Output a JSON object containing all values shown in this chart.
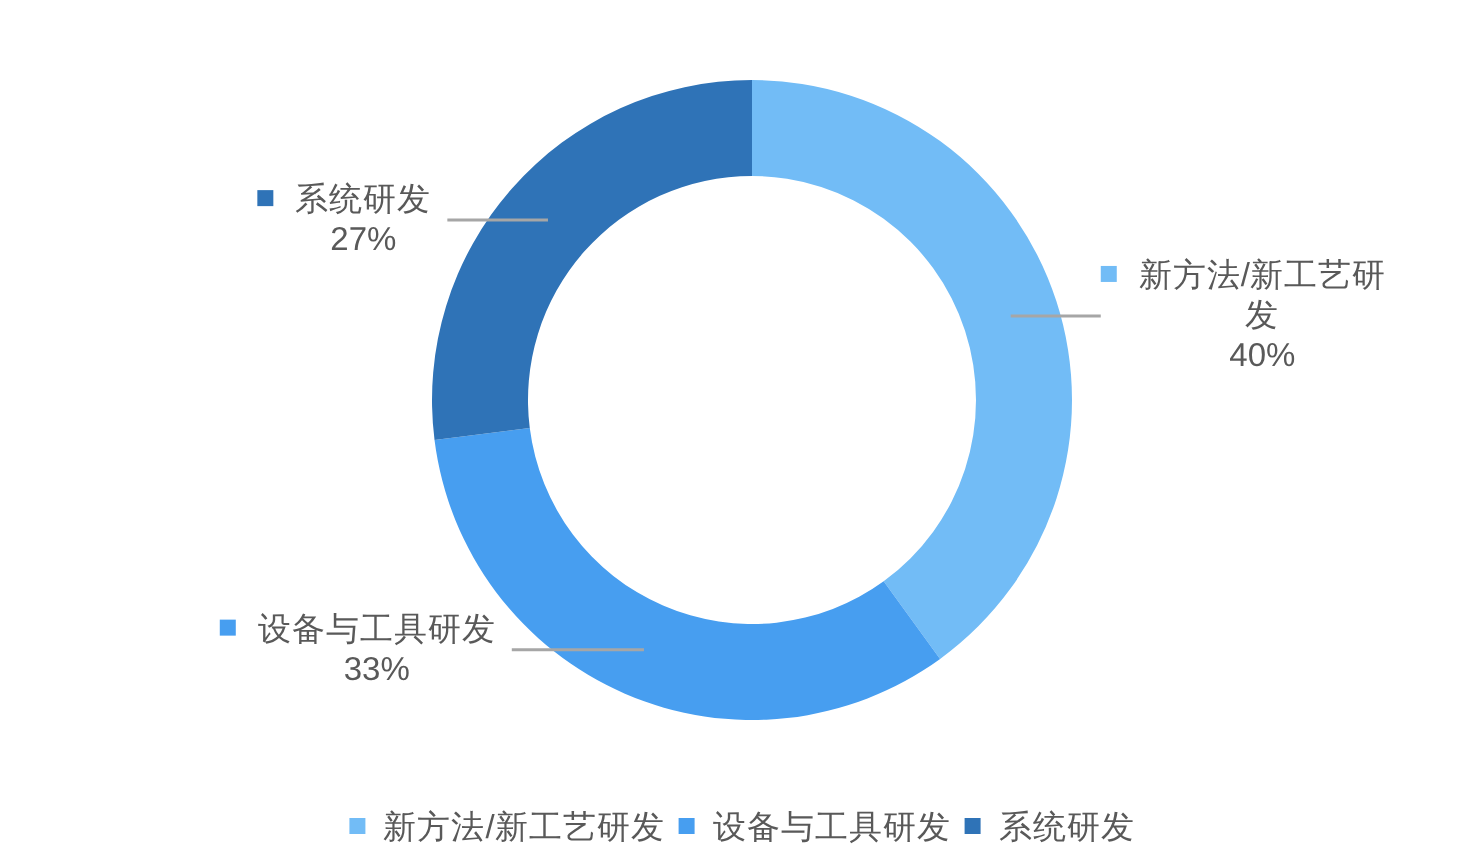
{
  "chart_data": {
    "type": "donut",
    "categories": [
      "新方法/新工艺研发",
      "设备与工具研发",
      "系统研发"
    ],
    "values": [
      40,
      33,
      27
    ],
    "value_labels": [
      "40%",
      "33%",
      "27%"
    ],
    "colors": [
      "#72bcf6",
      "#479ef0",
      "#2f73b7"
    ],
    "legend": "bottom"
  }
}
